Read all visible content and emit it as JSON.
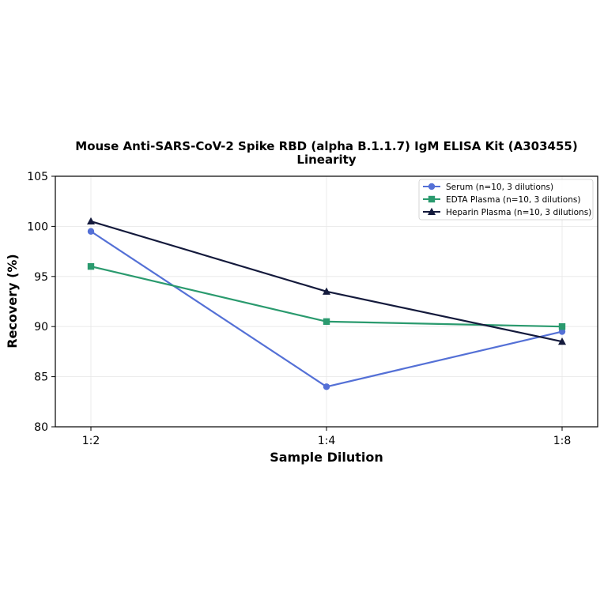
{
  "chart_data": {
    "type": "line",
    "title": "Mouse Anti-SARS-CoV-2 Spike RBD (alpha B.1.1.7) IgM ELISA Kit (A303455)",
    "subtitle": "Linearity",
    "xlabel": "Sample Dilution",
    "ylabel": "Recovery (%)",
    "categories": [
      "1:2",
      "1:4",
      "1:8"
    ],
    "ylim": [
      80,
      105
    ],
    "yticks": [
      80,
      85,
      90,
      95,
      100,
      105
    ],
    "grid": true,
    "legend_position": "top-right",
    "series": [
      {
        "name": "Serum (n=10, 3 dilutions)",
        "values": [
          99.5,
          84.0,
          89.5
        ],
        "color": "#5470d6",
        "marker": "circle"
      },
      {
        "name": "EDTA Plasma (n=10, 3 dilutions)",
        "values": [
          96.0,
          90.5,
          90.0
        ],
        "color": "#2a9a6e",
        "marker": "square"
      },
      {
        "name": "Heparin Plasma (n=10, 3 dilutions)",
        "values": [
          100.5,
          93.5,
          88.5
        ],
        "color": "#141a3c",
        "marker": "triangle"
      }
    ]
  }
}
